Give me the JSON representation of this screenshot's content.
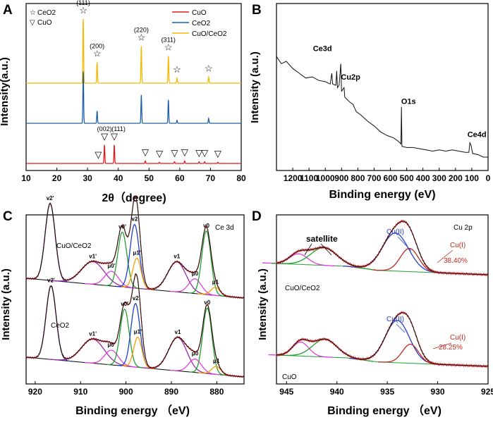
{
  "chart_data": [
    {
      "panel": "A",
      "type": "line",
      "xlabel": "2θ（degree)",
      "ylabel": "Intensity(a.u.)",
      "xlim": [
        10,
        80
      ],
      "xticks": [
        10,
        20,
        30,
        40,
        50,
        60,
        70,
        80
      ],
      "legend": [
        {
          "name": "CuO",
          "color": "#e31a1c"
        },
        {
          "name": "CeO2",
          "color": "#1f5fa8"
        },
        {
          "name": "CuO/CeO2",
          "color": "#f5b800"
        }
      ],
      "marker_legend": [
        {
          "symbol": "☆",
          "label": "CeO2"
        },
        {
          "symbol": "▽",
          "label": "CuO"
        }
      ],
      "series": [
        {
          "name": "CuO/CeO2",
          "color": "#f5b800",
          "baseline": 0.8,
          "peaks": [
            [
              28.6,
              2.6
            ],
            [
              33.1,
              0.85
            ],
            [
              47.5,
              1.5
            ],
            [
              56.3,
              1.1
            ],
            [
              59.1,
              0.2
            ],
            [
              69.4,
              0.25
            ]
          ]
        },
        {
          "name": "CeO2",
          "color": "#1f5fa8",
          "baseline": 0.4,
          "peaks": [
            [
              28.6,
              2.1
            ],
            [
              33.1,
              0.5
            ],
            [
              47.5,
              1.15
            ],
            [
              56.3,
              0.95
            ],
            [
              59.1,
              0.12
            ],
            [
              69.4,
              0.2
            ]
          ]
        },
        {
          "name": "CuO",
          "color": "#e31a1c",
          "baseline": 0.0,
          "peaks": [
            [
              35.5,
              0.75
            ],
            [
              38.7,
              0.75
            ],
            [
              48.8,
              0.1
            ],
            [
              53.4,
              0.05
            ],
            [
              58.3,
              0.07
            ],
            [
              61.6,
              0.1
            ],
            [
              66.3,
              0.07
            ],
            [
              68.1,
              0.07
            ],
            [
              72.4,
              0.05
            ]
          ]
        }
      ],
      "annotations": [
        {
          "text": "(111)",
          "x": 28.6,
          "series": "CuO/CeO2",
          "marker": "☆"
        },
        {
          "text": "(200)",
          "x": 33.1,
          "series": "CuO/CeO2",
          "marker": "☆"
        },
        {
          "text": "(220)",
          "x": 47.5,
          "series": "CuO/CeO2",
          "marker": "☆"
        },
        {
          "text": "(311)",
          "x": 56.3,
          "series": "CuO/CeO2",
          "marker": "☆"
        },
        {
          "text": "",
          "x": 59.1,
          "series": "CuO/CeO2",
          "marker": "☆"
        },
        {
          "text": "",
          "x": 69.4,
          "series": "CuO/CeO2",
          "marker": "☆"
        },
        {
          "text": "(002)",
          "x": 35.5,
          "series": "CuO",
          "marker": "▽"
        },
        {
          "text": "(111)",
          "x": 38.7,
          "series": "CuO",
          "marker": "▽"
        },
        {
          "text": "",
          "x": 33.5,
          "series": "CuO",
          "marker": "▽"
        },
        {
          "text": "",
          "x": 48.8,
          "series": "CuO",
          "marker": "▽"
        },
        {
          "text": "",
          "x": 53.4,
          "series": "CuO",
          "marker": "▽"
        },
        {
          "text": "",
          "x": 58.3,
          "series": "CuO",
          "marker": "▽"
        },
        {
          "text": "",
          "x": 61.6,
          "series": "CuO",
          "marker": "▽"
        },
        {
          "text": "",
          "x": 66.3,
          "series": "CuO",
          "marker": "▽"
        },
        {
          "text": "",
          "x": 68.1,
          "series": "CuO",
          "marker": "▽"
        },
        {
          "text": "",
          "x": 72.4,
          "series": "CuO",
          "marker": "▽"
        }
      ]
    },
    {
      "panel": "B",
      "type": "line",
      "xlabel": "Binding energy (eV)",
      "ylabel": "Intensity (a.u.)",
      "xlim": [
        1300,
        0
      ],
      "xticks": [
        1200,
        1100,
        1000,
        900,
        800,
        700,
        600,
        500,
        400,
        300,
        200,
        100,
        0
      ],
      "points": [
        [
          1300,
          0.84
        ],
        [
          1270,
          0.78
        ],
        [
          1240,
          0.8
        ],
        [
          1200,
          0.74
        ],
        [
          1160,
          0.7
        ],
        [
          1120,
          0.66
        ],
        [
          1080,
          0.67
        ],
        [
          1040,
          0.64
        ],
        [
          1000,
          0.63
        ],
        [
          970,
          0.61
        ],
        [
          960,
          0.7
        ],
        [
          955,
          0.61
        ],
        [
          935,
          0.6
        ],
        [
          930,
          0.72
        ],
        [
          925,
          0.58
        ],
        [
          915,
          0.6
        ],
        [
          905,
          0.78
        ],
        [
          900,
          0.55
        ],
        [
          885,
          0.58
        ],
        [
          880,
          0.5
        ],
        [
          850,
          0.46
        ],
        [
          830,
          0.44
        ],
        [
          810,
          0.38
        ],
        [
          780,
          0.35
        ],
        [
          740,
          0.3
        ],
        [
          700,
          0.26
        ],
        [
          660,
          0.21
        ],
        [
          620,
          0.18
        ],
        [
          580,
          0.16
        ],
        [
          550,
          0.13
        ],
        [
          535,
          0.11
        ],
        [
          532,
          0.42
        ],
        [
          529,
          0.09
        ],
        [
          500,
          0.08
        ],
        [
          460,
          0.08
        ],
        [
          420,
          0.07
        ],
        [
          380,
          0.06
        ],
        [
          340,
          0.05
        ],
        [
          300,
          0.06
        ],
        [
          260,
          0.05
        ],
        [
          220,
          0.06
        ],
        [
          180,
          0.05
        ],
        [
          140,
          0.04
        ],
        [
          118,
          0.04
        ],
        [
          112,
          0.12
        ],
        [
          105,
          0.1
        ],
        [
          95,
          0.03
        ],
        [
          60,
          0.02
        ],
        [
          30,
          0.0
        ],
        [
          0,
          0.0
        ]
      ],
      "annotations": [
        {
          "text": "Ce3d",
          "x": 905
        },
        {
          "text": "Cu2p",
          "x": 905
        },
        {
          "text": "O1s",
          "x": 532
        },
        {
          "text": "Ce4d",
          "x": 112
        }
      ]
    },
    {
      "panel": "C",
      "type": "line",
      "title": "Ce 3d",
      "xlabel": "Binding energy （eV)",
      "ylabel": "Intensity (a.u.)",
      "xlim": [
        922,
        874
      ],
      "xticks": [
        920,
        910,
        900,
        890,
        880
      ],
      "samples": [
        {
          "name": "CuO/CeO2",
          "components": [
            {
              "label": "v2'",
              "center": 916.7,
              "height": 1.15,
              "width": 1.1,
              "color": "#1f3fd0"
            },
            {
              "label": "v1'",
              "center": 907.3,
              "height": 0.34,
              "width": 2.5,
              "color": "#9b2aa8"
            },
            {
              "label": "μ0'",
              "center": 903.2,
              "height": 0.22,
              "width": 1.5,
              "color": "#e040e0"
            },
            {
              "label": "v0'",
              "center": 900.8,
              "height": 0.82,
              "width": 1.0,
              "color": "#22a030"
            },
            {
              "label": "v2",
              "center": 898.1,
              "height": 0.95,
              "width": 1.0,
              "color": "#1f3fd0"
            },
            {
              "label": "μ1'",
              "center": 897.6,
              "height": 0.45,
              "width": 0.9,
              "color": "#f5a000"
            },
            {
              "label": "v1",
              "center": 888.8,
              "height": 0.45,
              "width": 2.0,
              "color": "#9b2aa8"
            },
            {
              "label": "μ0",
              "center": 884.8,
              "height": 0.22,
              "width": 1.4,
              "color": "#e040e0"
            },
            {
              "label": "v0",
              "center": 882.3,
              "height": 0.95,
              "width": 1.0,
              "color": "#22a030"
            },
            {
              "label": "μ1",
              "center": 880.3,
              "height": 0.12,
              "width": 1.0,
              "color": "#f5a000"
            }
          ]
        },
        {
          "name": "CeO2",
          "components": [
            {
              "label": "v2'",
              "center": 916.5,
              "height": 1.1,
              "width": 1.1,
              "color": "#1f3fd0"
            },
            {
              "label": "v1'",
              "center": 907.3,
              "height": 0.36,
              "width": 2.5,
              "color": "#9b2aa8"
            },
            {
              "label": "μ0'",
              "center": 903.2,
              "height": 0.22,
              "width": 1.5,
              "color": "#e040e0"
            },
            {
              "label": "v0'",
              "center": 900.3,
              "height": 0.85,
              "width": 1.0,
              "color": "#22a030"
            },
            {
              "label": "v2",
              "center": 897.9,
              "height": 0.95,
              "width": 1.0,
              "color": "#1f3fd0"
            },
            {
              "label": "μ1'",
              "center": 897.4,
              "height": 0.45,
              "width": 0.9,
              "color": "#f5a000"
            },
            {
              "label": "v1",
              "center": 888.6,
              "height": 0.5,
              "width": 2.0,
              "color": "#9b2aa8"
            },
            {
              "label": "μ0",
              "center": 884.8,
              "height": 0.2,
              "width": 1.4,
              "color": "#e040e0"
            },
            {
              "label": "v0",
              "center": 882.1,
              "height": 0.98,
              "width": 1.0,
              "color": "#22a030"
            },
            {
              "label": "μ1",
              "center": 880.1,
              "height": 0.12,
              "width": 1.0,
              "color": "#f5a000"
            }
          ]
        }
      ]
    },
    {
      "panel": "D",
      "type": "line",
      "title": "Cu 2p",
      "xlabel": "Binding energy （eV)",
      "ylabel": "Intensity (a.u.)",
      "xlim": [
        946,
        925
      ],
      "xticks": [
        945,
        940,
        935,
        930,
        925
      ],
      "annotations": [
        {
          "text": "satellite",
          "x": 941.5
        },
        {
          "text": "Cu(II)",
          "x": 934.2
        },
        {
          "text": "Cu(I)",
          "x": 932.8
        },
        {
          "text": "Cu(II)",
          "x": 934.0
        },
        {
          "text": "Cu(I)",
          "x": 932.7
        }
      ],
      "samples": [
        {
          "name": "CuO/CeO2",
          "cu1_percent": "38.40%",
          "components": [
            {
              "center": 943.8,
              "height": 0.25,
              "width": 0.9,
              "color": "#e040e0"
            },
            {
              "center": 941.3,
              "height": 0.42,
              "width": 1.3,
              "color": "#22a030"
            },
            {
              "center": 934.2,
              "height": 0.9,
              "width": 1.3,
              "color": "#1f3fd0"
            },
            {
              "center": 932.8,
              "height": 0.55,
              "width": 0.9,
              "color": "#c0281e"
            }
          ]
        },
        {
          "name": "CuO",
          "cu1_percent": "28.25%",
          "components": [
            {
              "center": 943.6,
              "height": 0.33,
              "width": 0.8,
              "color": "#e040e0"
            },
            {
              "center": 941.2,
              "height": 0.42,
              "width": 1.2,
              "color": "#22a030"
            },
            {
              "center": 934.0,
              "height": 1.0,
              "width": 1.2,
              "color": "#1f3fd0"
            },
            {
              "center": 932.7,
              "height": 0.45,
              "width": 0.8,
              "color": "#c0281e"
            }
          ]
        }
      ]
    }
  ]
}
